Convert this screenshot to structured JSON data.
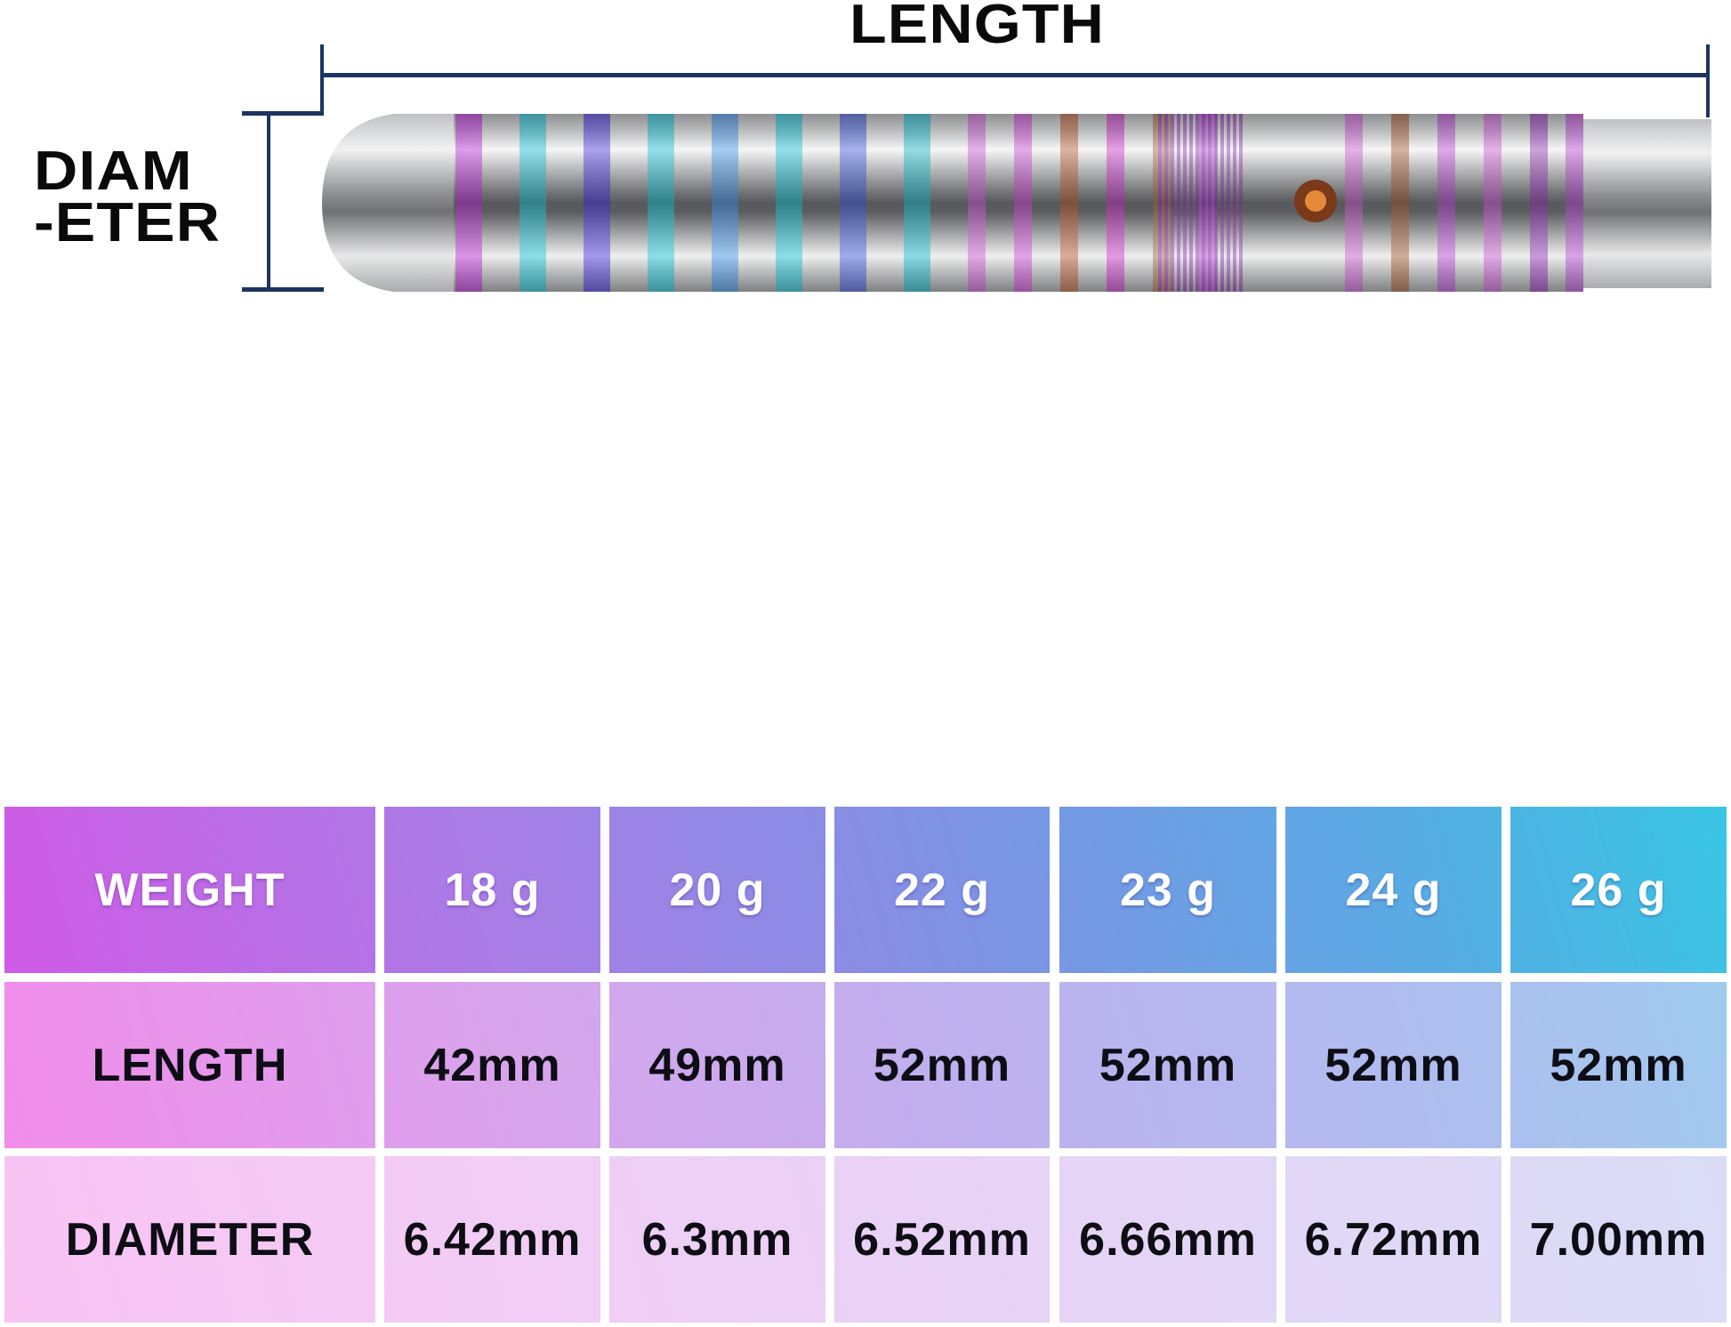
{
  "labels": {
    "length": "LENGTH",
    "diameter_line1": "DIAM",
    "diameter_line2": "-ETER"
  },
  "colors": {
    "dimension_line": "#1d3461",
    "header_start": "#d05ae6",
    "header_end": "#38c6e4"
  },
  "table": {
    "rows": [
      {
        "label": "WEIGHT",
        "values": [
          "18 g",
          "20 g",
          "22 g",
          "23 g",
          "24 g",
          "26 g"
        ]
      },
      {
        "label": "LENGTH",
        "values": [
          "42mm",
          "49mm",
          "52mm",
          "52mm",
          "52mm",
          "52mm"
        ]
      },
      {
        "label": "DIAMETER",
        "values": [
          "6.42mm",
          "6.3mm",
          "6.52mm",
          "6.66mm",
          "6.72mm",
          "7.00mm"
        ]
      }
    ]
  }
}
